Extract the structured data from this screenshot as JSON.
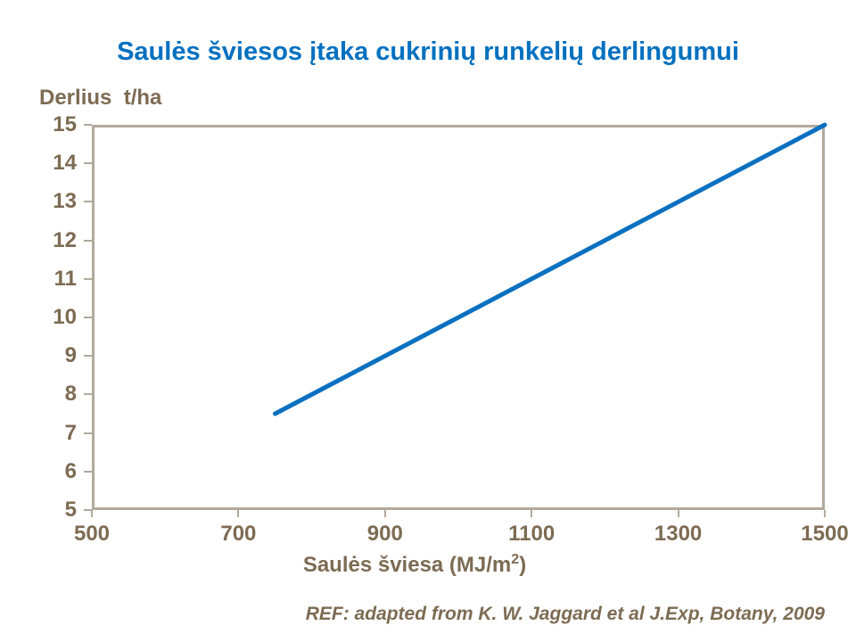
{
  "colors": {
    "title-blue": "#0070c0",
    "line-blue": "#0b70c0",
    "axis-line": "#b3a99c",
    "label-brown": "#7d6b53"
  },
  "footer": {
    "ref": "REF: adapted from K. W. Jaggard et al J.Exp, Botany, 2009"
  },
  "chart_data": {
    "type": "line",
    "title": "Saulės šviesos įtaka cukrinių runkelių derlingumui",
    "ylabel": "Derlius  t/ha",
    "xlabel": {
      "pre": "Saulės šviesa (MJ/m",
      "sup": "2",
      "post": ")"
    },
    "xlabel_text": "Saulės šviesa (MJ/m2)",
    "xlim": [
      500,
      1500
    ],
    "ylim": [
      5,
      15
    ],
    "xticks": [
      500,
      700,
      900,
      1100,
      1300,
      1500
    ],
    "yticks": [
      5,
      6,
      7,
      8,
      9,
      10,
      11,
      12,
      13,
      14,
      15
    ],
    "grid": false,
    "legend": false,
    "series": [
      {
        "name": "sugar-beet-yield",
        "points": [
          [
            750,
            7.5
          ],
          [
            1500,
            15
          ]
        ]
      }
    ]
  }
}
